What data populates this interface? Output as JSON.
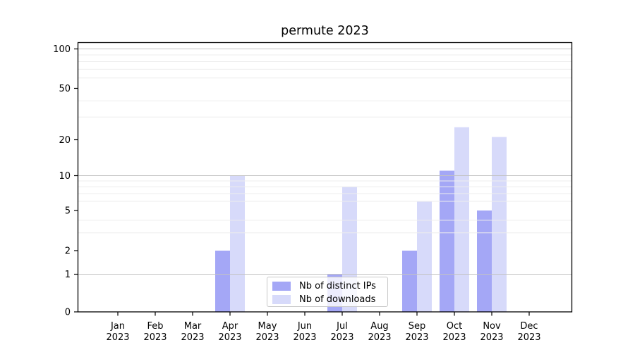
{
  "chart_data": {
    "type": "bar",
    "title": "permute 2023",
    "categories": [
      "Jan 2023",
      "Feb 2023",
      "Mar 2023",
      "Apr 2023",
      "May 2023",
      "Jun 2023",
      "Jul 2023",
      "Aug 2023",
      "Sep 2023",
      "Oct 2023",
      "Nov 2023",
      "Dec 2023"
    ],
    "series": [
      {
        "name": "Nb of distinct IPs",
        "color": "#a4a7f6",
        "values": [
          0,
          0,
          0,
          2,
          0,
          0,
          1,
          0,
          2,
          11,
          5,
          0
        ]
      },
      {
        "name": "Nb of downloads",
        "color": "#d7dafa",
        "values": [
          0,
          0,
          0,
          10,
          0,
          0,
          8,
          0,
          6,
          25,
          21,
          0
        ]
      }
    ],
    "yscale": "asinh-log",
    "ylim": [
      0,
      113
    ],
    "y_tick_labels": [
      "0",
      "1",
      "2",
      "5",
      "10",
      "20",
      "50",
      "100"
    ],
    "y_tick_values": [
      0,
      1,
      2,
      5,
      10,
      20,
      50,
      100
    ],
    "y_major_gridlines": [
      1,
      10,
      100
    ],
    "y_minor_gridlines": [
      3,
      4,
      6,
      7,
      8,
      9,
      30,
      40,
      60,
      70,
      80,
      90
    ],
    "grid": "horizontal major+minor, drawn above bars",
    "legend_position": "lower center",
    "colors": {
      "axis": "#000000",
      "tick_text": "#000000",
      "grid_major": "#c2c2c2",
      "grid_minor": "#ededed",
      "legend_border": "#c8c8c8"
    }
  }
}
